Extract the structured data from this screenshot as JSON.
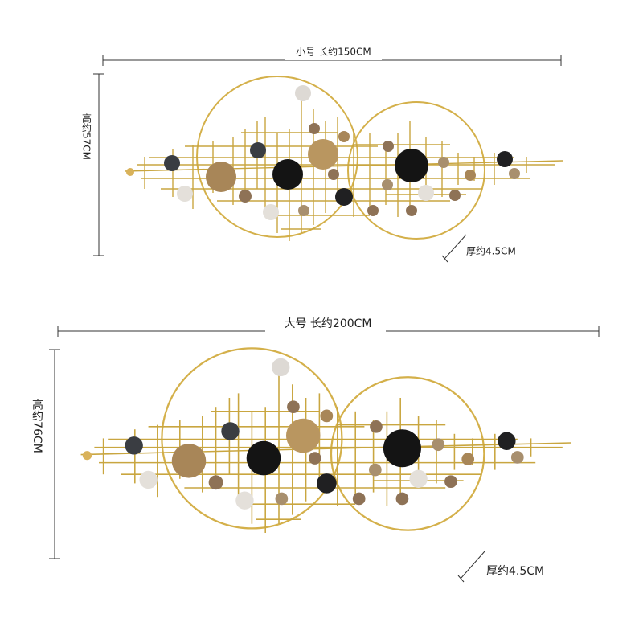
{
  "small": {
    "width_label": "小号 长约150CM",
    "height_label": "高约57CM",
    "depth_label": "厚约4.5CM"
  },
  "large": {
    "width_label": "大号 长约200CM",
    "height_label": "高约76CM",
    "depth_label": "厚约4.5CM"
  }
}
